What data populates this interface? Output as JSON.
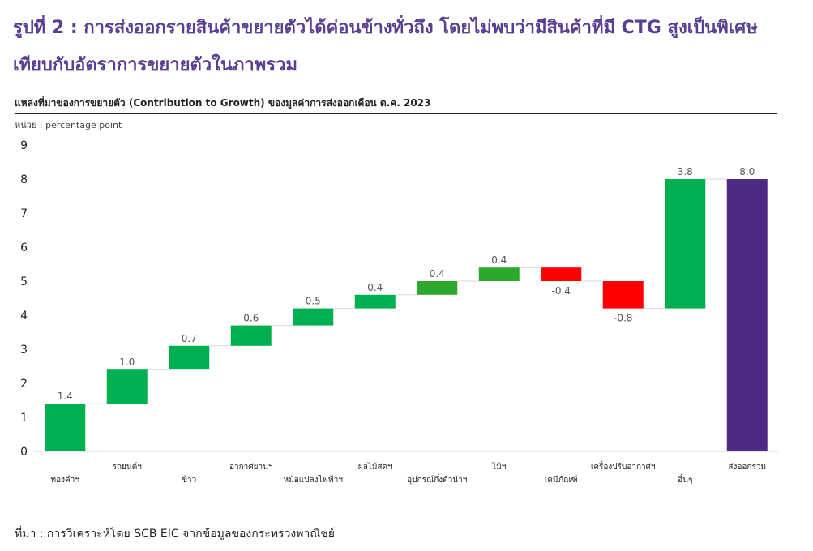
{
  "header": {
    "title_line1": "รูปที่ 2 : การส่งออกรายสินค้าขยายตัวได้ค่อนข้างทั่วถึง โดยไม่พบว่ามีสินค้าที่มี CTG สูงเป็นพิเศษ",
    "title_line2": "เทียบกับอัตราการขยายตัวในภาพรวม",
    "subtitle": "แหล่งที่มาของการขยายตัว (Contribution to Growth) ของมูลค่าการส่งออกเดือน ต.ค. 2023",
    "unit": "หน่วย : percentage point"
  },
  "footer": {
    "source": "ที่มา : การวิเคราะห์โดย SCB EIC จากข้อมูลของกระทรวงพาณิชย์"
  },
  "colors": {
    "heading": "#5a3e91",
    "positive": "#00b050",
    "positive_light": "#2ca82c",
    "negative": "#ff0000",
    "total": "#4e2a84",
    "connector": "#d9d9d9"
  },
  "chart_data": {
    "type": "bar",
    "subtype": "waterfall",
    "ylim": [
      0,
      9
    ],
    "yticks": [
      0,
      1,
      2,
      3,
      4,
      5,
      6,
      7,
      8,
      9
    ],
    "grid": false,
    "categories": [
      "ทองคำฯ",
      "รถยนต์ฯ",
      "ข้าว",
      "อากาศยานฯ",
      "หม้อแปลงไฟฟ้าฯ",
      "ผลไม้สดฯ",
      "อุปกรณ์กึ่งตัวนำฯ",
      "ไม้ฯ",
      "เคมีภัณฑ์",
      "เครื่องปรับอากาศฯ",
      "อื่นๆ",
      "ส่งออกรวม"
    ],
    "values": [
      1.4,
      1.0,
      0.7,
      0.6,
      0.5,
      0.4,
      0.4,
      0.4,
      -0.4,
      -0.8,
      3.8,
      8.0
    ],
    "value_labels": [
      "1.4",
      "1.0",
      "0.7",
      "0.6",
      "0.5",
      "0.4",
      "0.4",
      "0.4",
      "-0.4",
      "-0.8",
      "3.8",
      "8.0"
    ],
    "bar_kind": [
      "delta",
      "delta",
      "delta",
      "delta",
      "delta",
      "delta",
      "delta",
      "delta",
      "delta",
      "delta",
      "delta",
      "total"
    ],
    "bar_colors": [
      "#00b050",
      "#00b050",
      "#00b050",
      "#00b050",
      "#00b050",
      "#00b050",
      "#2ca82c",
      "#2ca82c",
      "#ff0000",
      "#ff0000",
      "#00b050",
      "#4e2a84"
    ]
  }
}
